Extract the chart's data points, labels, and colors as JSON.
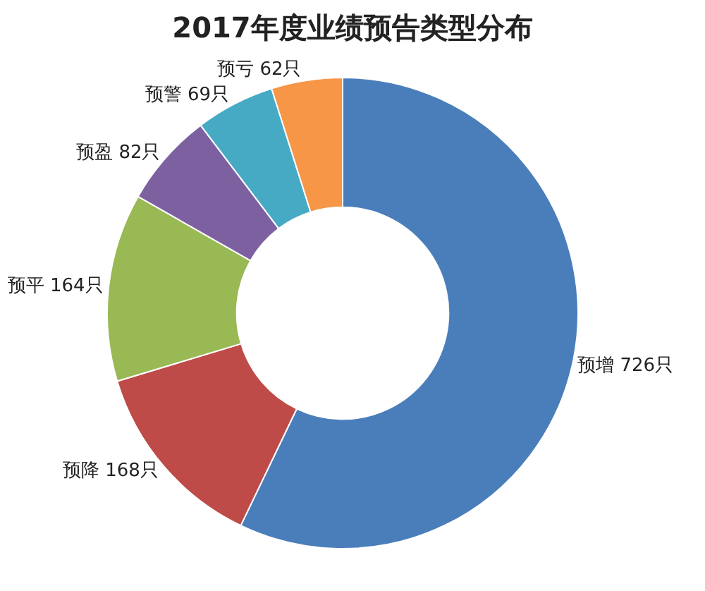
{
  "chart_data": {
    "type": "donut",
    "title": "2017年度业绩预告类型分布",
    "categories": [
      "预增",
      "预降",
      "预平",
      "预盈",
      "预警",
      "预亏"
    ],
    "values": [
      726,
      168,
      164,
      82,
      69,
      62
    ],
    "value_labels": [
      "726只",
      "168只",
      "164只",
      "82只",
      "69只",
      "62只"
    ],
    "colors": [
      "#4a7ebb",
      "#be4b48",
      "#98b954",
      "#7d60a0",
      "#46aac5",
      "#f79646"
    ],
    "legend": false
  }
}
